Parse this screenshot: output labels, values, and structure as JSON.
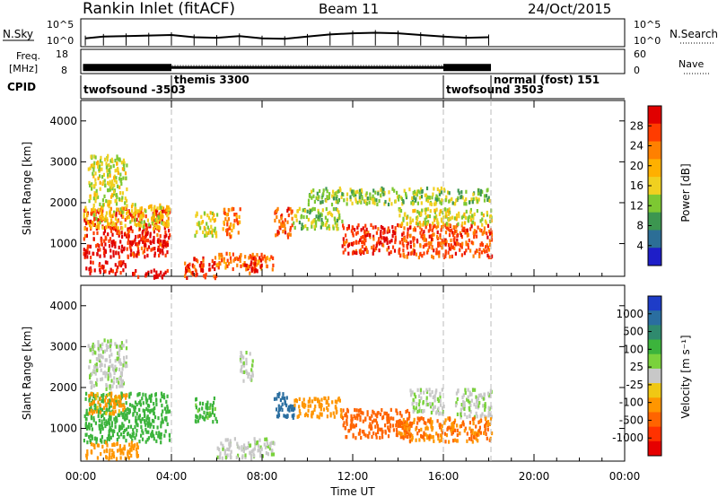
{
  "header": {
    "station": "Rankin Inlet (fitACF)",
    "beam": "Beam 11",
    "date": "24/Oct/2015"
  },
  "noise_panel": {
    "left_label": "N.Sky",
    "right_label": "N.Search",
    "left_ticks": [
      "10^5",
      "10^0"
    ],
    "right_ticks": [
      "10^5",
      "10^0"
    ]
  },
  "freq_panel": {
    "left_label_line1": "Freq.",
    "left_label_line2": "[MHz]",
    "left_ticks": [
      "18",
      "8"
    ],
    "right_label": "Nave",
    "right_ticks": [
      "60",
      "0"
    ]
  },
  "cpid": {
    "label": "CPID",
    "segments": [
      {
        "name": "twofsound -3503",
        "start_hour": 0.0
      },
      {
        "name": "themis 3300",
        "start_hour": 4.0
      },
      {
        "name": "twofsound 3503",
        "start_hour": 16.0
      },
      {
        "name": "normal (fost) 151",
        "start_hour": 18.1
      }
    ]
  },
  "time_axis": {
    "label": "Time UT",
    "ticks": [
      "00:00",
      "04:00",
      "08:00",
      "12:00",
      "16:00",
      "20:00",
      "00:00"
    ]
  },
  "power_colorbar": {
    "label": "Power [dB]",
    "ticks": [
      "28",
      "24",
      "20",
      "16",
      "12",
      "8",
      "4"
    ],
    "colors": [
      "#e00000",
      "#ff3c00",
      "#ff8000",
      "#ffb000",
      "#f0d020",
      "#7dc832",
      "#3c9650",
      "#2c6e96",
      "#1e1ec8"
    ]
  },
  "velocity_colorbar": {
    "label": "Velocity [m s⁻¹]",
    "ticks": [
      "1000",
      "500",
      "100",
      "25",
      "-25",
      "-100",
      "-500",
      "-1000"
    ],
    "colors": [
      "#1e3cc8",
      "#2a6ea0",
      "#2f8a6e",
      "#3cb43c",
      "#7ad23c",
      "#c8c8c8",
      "#f0c814",
      "#ff9600",
      "#ff6400",
      "#ff3200",
      "#e60000"
    ]
  },
  "range_axis_label": "Slant Range [km]",
  "chart_data": {
    "type": "heatmap",
    "x_unit": "hours UT",
    "xlim": [
      0,
      24
    ],
    "ylim": [
      200,
      4500
    ],
    "y_ticks": [
      1000,
      2000,
      3000,
      4000
    ],
    "mode_boundaries_hours": [
      4.0,
      16.0,
      18.1
    ],
    "data_end_hour": 18.2,
    "noise_ylim_log": [
      0,
      5
    ],
    "noise_sky": [
      [
        0.2,
        1.5
      ],
      [
        1.0,
        1.8
      ],
      [
        2.0,
        1.9
      ],
      [
        3.0,
        2.0
      ],
      [
        4.0,
        2.1
      ],
      [
        5.0,
        1.7
      ],
      [
        6.0,
        1.6
      ],
      [
        7.0,
        1.9
      ],
      [
        8.0,
        1.5
      ],
      [
        9.0,
        1.4
      ],
      [
        10.0,
        1.8
      ],
      [
        11.0,
        2.2
      ],
      [
        12.0,
        2.4
      ],
      [
        13.0,
        2.5
      ],
      [
        14.0,
        2.4
      ],
      [
        15.0,
        2.1
      ],
      [
        16.0,
        1.8
      ],
      [
        17.0,
        1.6
      ],
      [
        18.0,
        1.7
      ]
    ],
    "frequency_ylim": [
      8,
      18
    ],
    "frequency_mhz": [
      [
        0.1,
        10.5
      ],
      [
        4.0,
        10.5
      ],
      [
        18.1,
        10.5
      ]
    ],
    "nave_ylim": [
      0,
      60
    ],
    "nave": [
      [
        0.1,
        20
      ],
      [
        18.1,
        20
      ]
    ],
    "power": {
      "unit": "dB",
      "range": [
        0,
        30
      ],
      "regions": [
        {
          "x": [
            0.1,
            3.9
          ],
          "y": [
            700,
            1900
          ],
          "value": 27
        },
        {
          "x": [
            0.1,
            3.9
          ],
          "y": [
            1400,
            2000
          ],
          "value": 16
        },
        {
          "x": [
            0.2,
            2.0
          ],
          "y": [
            300,
            600
          ],
          "value": 28
        },
        {
          "x": [
            0.3,
            2.0
          ],
          "y": [
            2000,
            3200
          ],
          "value": 14
        },
        {
          "x": [
            2.2,
            3.8
          ],
          "y": [
            200,
            400
          ],
          "value": 28
        },
        {
          "x": [
            4.5,
            6.0
          ],
          "y": [
            200,
            700
          ],
          "value": 26
        },
        {
          "x": [
            5.0,
            6.0
          ],
          "y": [
            1200,
            1800
          ],
          "value": 14
        },
        {
          "x": [
            6.2,
            7.0
          ],
          "y": [
            1200,
            1900
          ],
          "value": 22
        },
        {
          "x": [
            6.0,
            8.5
          ],
          "y": [
            400,
            800
          ],
          "value": 22
        },
        {
          "x": [
            7.2,
            8.0
          ],
          "y": [
            300,
            700
          ],
          "value": 27
        },
        {
          "x": [
            8.5,
            9.3
          ],
          "y": [
            1200,
            1900
          ],
          "value": 24
        },
        {
          "x": [
            9.3,
            11.5
          ],
          "y": [
            1400,
            1900
          ],
          "value": 12
        },
        {
          "x": [
            11.5,
            14.0
          ],
          "y": [
            800,
            1500
          ],
          "value": 26
        },
        {
          "x": [
            14.0,
            18.1
          ],
          "y": [
            700,
            1500
          ],
          "value": 24
        },
        {
          "x": [
            14.0,
            18.1
          ],
          "y": [
            1500,
            1900
          ],
          "value": 14
        },
        {
          "x": [
            10.0,
            18.0
          ],
          "y": [
            2000,
            2400
          ],
          "value": 12
        }
      ]
    },
    "velocity": {
      "unit": "m s^-1",
      "range": [
        -1000,
        1000
      ],
      "regions": [
        {
          "x": [
            0.1,
            3.9
          ],
          "y": [
            700,
            1900
          ],
          "value": 150
        },
        {
          "x": [
            0.3,
            2.0
          ],
          "y": [
            1400,
            1900
          ],
          "value": -120
        },
        {
          "x": [
            0.2,
            2.5
          ],
          "y": [
            300,
            700
          ],
          "value": -150
        },
        {
          "x": [
            0.3,
            2.0
          ],
          "y": [
            2000,
            3200
          ],
          "value": 15
        },
        {
          "x": [
            5.0,
            6.0
          ],
          "y": [
            1200,
            1800
          ],
          "value": 120
        },
        {
          "x": [
            7.0,
            7.6
          ],
          "y": [
            2200,
            2900
          ],
          "value": 10
        },
        {
          "x": [
            6.0,
            8.5
          ],
          "y": [
            300,
            800
          ],
          "value": 10
        },
        {
          "x": [
            8.5,
            9.4
          ],
          "y": [
            1300,
            1900
          ],
          "value": 600
        },
        {
          "x": [
            9.4,
            11.5
          ],
          "y": [
            1300,
            1800
          ],
          "value": -150
        },
        {
          "x": [
            11.5,
            14.5
          ],
          "y": [
            800,
            1500
          ],
          "value": -300
        },
        {
          "x": [
            14.5,
            16.0
          ],
          "y": [
            1400,
            2000
          ],
          "value": 15
        },
        {
          "x": [
            16.5,
            18.1
          ],
          "y": [
            1300,
            2000
          ],
          "value": 10
        },
        {
          "x": [
            14.0,
            18.1
          ],
          "y": [
            700,
            1300
          ],
          "value": -250
        }
      ]
    }
  }
}
